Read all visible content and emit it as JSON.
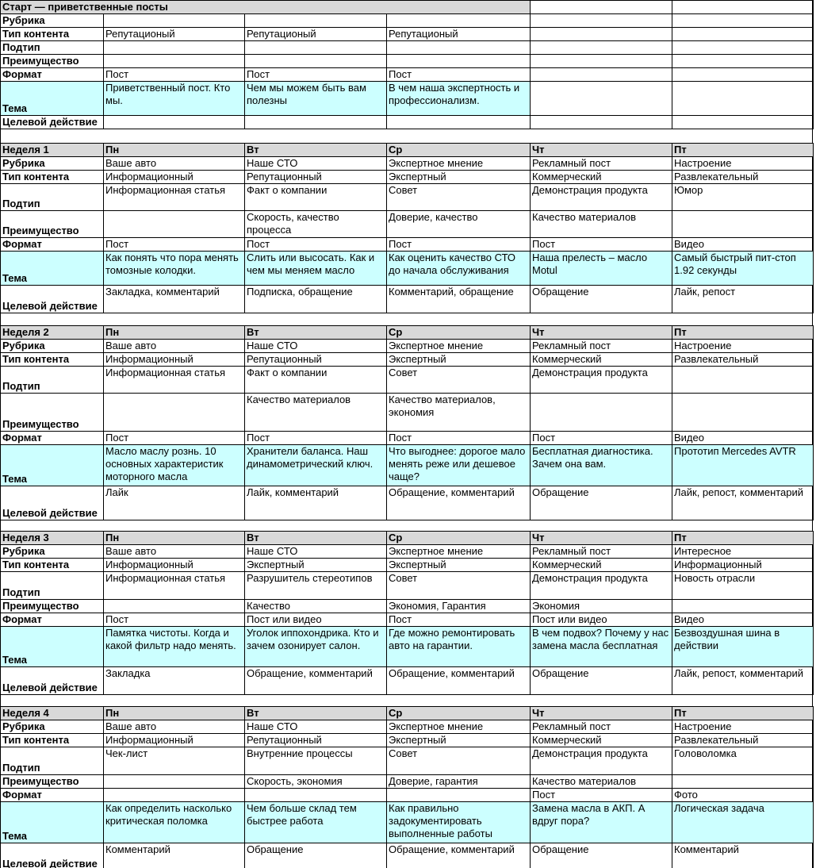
{
  "row_labels": [
    "Рубрика",
    "Тип контента",
    "Подтип",
    "Преимущество",
    "Формат",
    "Тема",
    "Целевой действие"
  ],
  "day_headers": [
    "Пн",
    "Вт",
    "Ср",
    "Чт",
    "Пт"
  ],
  "colors": {
    "section_header_bg": "#d9d9d9",
    "theme_row_bg": "#ccffff",
    "grid_border": "#000000"
  },
  "sections": [
    {
      "title": "Старт — приветственные посты",
      "kind": "start",
      "cells": [
        [
          "",
          "",
          "",
          "",
          ""
        ],
        [
          "Репутационый",
          "Репутационый",
          "Репутационый",
          "",
          ""
        ],
        [
          "",
          "",
          "",
          "",
          ""
        ],
        [
          "",
          "",
          "",
          "",
          ""
        ],
        [
          "Пост",
          "Пост",
          "Пост",
          "",
          ""
        ],
        [
          "Приветственный пост. Кто мы.",
          "Чем мы можем быть вам полезны",
          "В чем наша экспертность и профессионализм.",
          "",
          ""
        ],
        [
          "",
          "",
          "",
          "",
          ""
        ]
      ]
    },
    {
      "title": "Неделя 1",
      "kind": "week",
      "cells": [
        [
          "Ваше авто",
          "Наше СТО",
          "Экспертное мнение",
          "Рекламный пост",
          "Настроение"
        ],
        [
          "Информационный",
          "Репутационный",
          "Экспертный",
          "Коммерческий",
          "Развлекательный"
        ],
        [
          "Информационная статья",
          "Факт о компании",
          "Совет",
          "Демонстрация продукта",
          "Юмор"
        ],
        [
          "",
          "Скорость, качество процесса",
          "Доверие, качество",
          "Качество материалов",
          ""
        ],
        [
          "Пост",
          "Пост",
          "Пост",
          "Пост",
          "Видео"
        ],
        [
          "Как понять что пора менять томозные колодки.",
          "Слить или высосать. Как и чем мы меняем масло",
          "Как оценить качество СТО до начала обслуживания",
          "Наша прелесть – масло Motul",
          "Самый быстрый пит-стоп 1.92 секунды"
        ],
        [
          "Закладка, комментарий",
          "Подписка, обращение",
          "Комментарий, обращение",
          "Обращение",
          "Лайк, репост"
        ]
      ]
    },
    {
      "title": "Неделя 2",
      "kind": "week",
      "cells": [
        [
          "Ваше авто",
          "Наше СТО",
          "Экспертное мнение",
          "Рекламный пост",
          "Настроение"
        ],
        [
          "Информационный",
          "Репутационный",
          "Экспертный",
          "Коммерческий",
          "Развлекательный"
        ],
        [
          "Информационная статья",
          "Факт о компании",
          "Совет",
          "Демонстрация продукта",
          ""
        ],
        [
          "",
          "Качество материалов",
          "Качество материалов, экономия",
          "",
          ""
        ],
        [
          "Пост",
          "Пост",
          "Пост",
          "Пост",
          "Видео"
        ],
        [
          "Масло маслу рознь. 10 основных характеристик моторного масла",
          "Хранители баланса. Наш динамометрический ключ.",
          "Что выгоднее: дорогое мало менять реже или дешевое чаще?",
          "Бесплатная диагностика. Зачем она вам.",
          "Прототип Mercedes AVTR"
        ],
        [
          "Лайк",
          "Лайк, комментарий",
          "Обращение, комментарий",
          "Обращение",
          "Лайк, репост, комментарий"
        ]
      ]
    },
    {
      "title": "Неделя 3",
      "kind": "week",
      "cells": [
        [
          "Ваше авто",
          "Наше СТО",
          "Экспертное мнение",
          "Рекламный пост",
          "Интересное"
        ],
        [
          "Информационный",
          "Экспертный",
          "Экспертный",
          "Коммерческий",
          "Информационный"
        ],
        [
          "Информационная статья",
          "Разрушитель стереотипов",
          "Совет",
          "Демонстрация продукта",
          "Новость отрасли"
        ],
        [
          "",
          "Качество",
          "Экономия, Гарантия",
          "Экономия",
          ""
        ],
        [
          "Пост",
          "Пост или видео",
          "Пост",
          "Пост или видео",
          "Видео"
        ],
        [
          "Памятка чистоты. Когда и какой фильтр надо менять.",
          "Уголок иппохондрика. Кто и зачем озонирует салон.",
          "Где можно ремонтировать авто на гарантии.",
          "В чем подвох? Почему у нас замена масла бесплатная",
          "Безвоздушная шина в действии"
        ],
        [
          "Закладка",
          "Обращение, комментарий",
          "Обращение, комментарий",
          "Обращение",
          "Лайк, репост, комментарий"
        ]
      ]
    },
    {
      "title": "Неделя 4",
      "kind": "week",
      "cells": [
        [
          "Ваше авто",
          "Наше СТО",
          "Экспертное мнение",
          "Рекламный пост",
          "Настроение"
        ],
        [
          "Информационный",
          "Репутационный",
          "Экспертный",
          "Коммерческий",
          "Развлекательный"
        ],
        [
          "Чек-лист",
          "Внутренние процессы",
          "Совет",
          "Демонстрация продукта",
          "Головоломка"
        ],
        [
          "",
          "Скорость, экономия",
          "Доверие, гарантия",
          "Качество материалов",
          ""
        ],
        [
          "",
          "",
          "",
          "Пост",
          "Фото"
        ],
        [
          "Как определить насколько критическая поломка",
          "Чем больше склад тем быстрее работа",
          "Как правильно задокументировать выполненные работы",
          "Замена масла в АКП. А вдруг пора?",
          "Логическая задача"
        ],
        [
          "Комментарий",
          "Обращение",
          "Обращение, комментарий",
          "Обращение",
          "Комментарий"
        ]
      ]
    }
  ]
}
